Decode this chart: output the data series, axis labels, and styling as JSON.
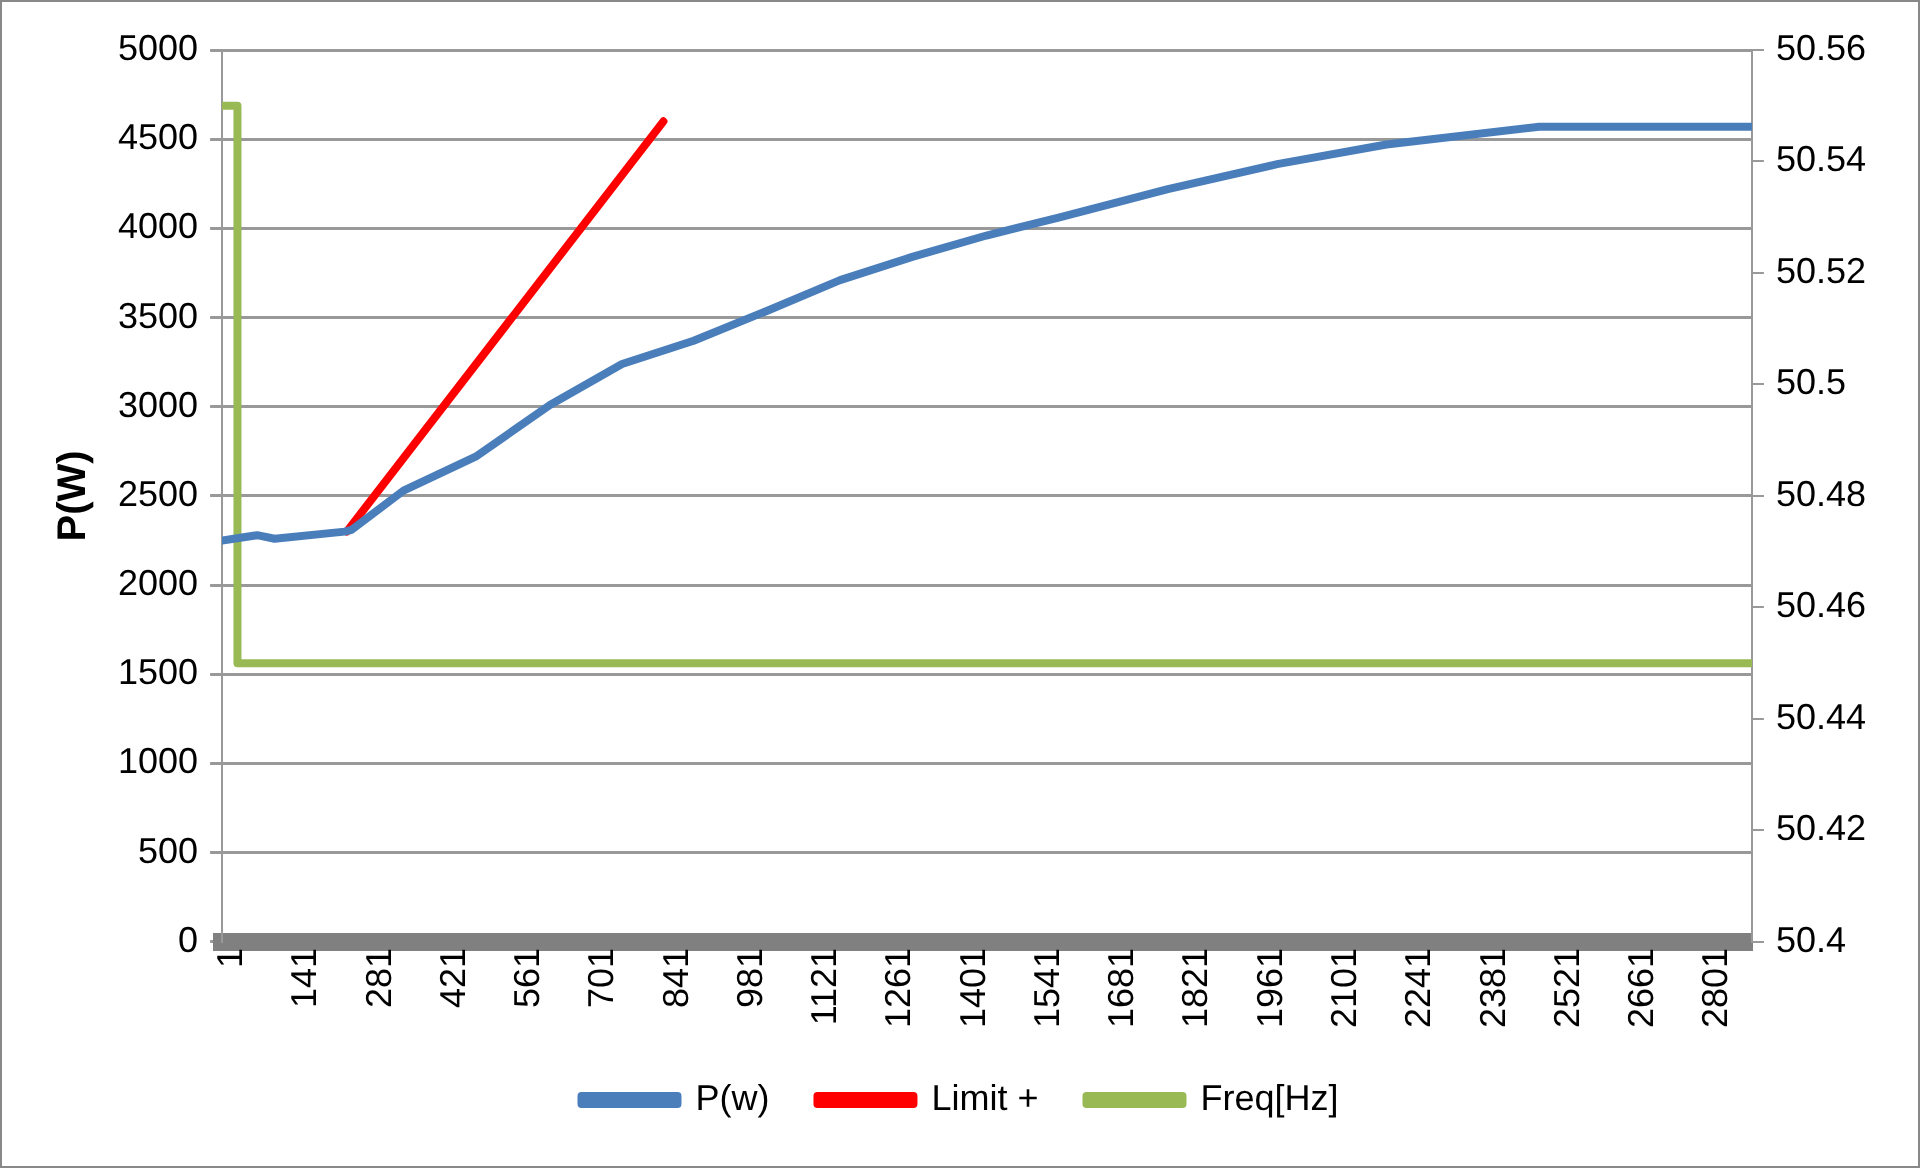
{
  "chart_data": {
    "type": "line",
    "ylabel": "P(W)",
    "legend": "bottom",
    "grid": "y",
    "marker": "none",
    "line_style": "solid",
    "xlim": [
      1,
      2885
    ],
    "xticks": [
      1,
      141,
      281,
      421,
      561,
      701,
      841,
      981,
      1121,
      1261,
      1401,
      1541,
      1681,
      1821,
      1961,
      2101,
      2241,
      2381,
      2521,
      2661,
      2801
    ],
    "ylim": [
      0,
      5000
    ],
    "yticks": [
      0,
      500,
      1000,
      1500,
      2000,
      2500,
      3000,
      3500,
      4000,
      4500,
      5000
    ],
    "y2lim": [
      50.4,
      50.56
    ],
    "y2ticks": [
      50.4,
      50.42,
      50.44,
      50.46,
      50.48,
      50.5,
      50.52,
      50.54,
      50.56
    ],
    "series": [
      {
        "name": "P(w)",
        "color": "#4a7ebb",
        "x": [
          1,
          67,
          100,
          232,
          245,
          343,
          479,
          619,
          755,
          890,
          1030,
          1166,
          1302,
          1442,
          1578,
          1784,
          1990,
          2196,
          2484,
          2883
        ],
        "values": [
          2250,
          2280,
          2260,
          2300,
          2310,
          2530,
          2720,
          3010,
          3240,
          3370,
          3540,
          3710,
          3840,
          3960,
          4060,
          4220,
          4360,
          4470,
          4570,
          4570
        ]
      },
      {
        "name": "Limit +",
        "color": "#ff0000",
        "x": [
          236,
          833
        ],
        "values": [
          2300,
          4600
        ]
      },
      {
        "name": "Freq[Hz]",
        "color": "#98b954",
        "axis": "y2",
        "x": [
          1,
          30,
          30,
          2883
        ],
        "values": [
          50.55,
          50.55,
          50.45,
          50.45
        ]
      }
    ]
  }
}
